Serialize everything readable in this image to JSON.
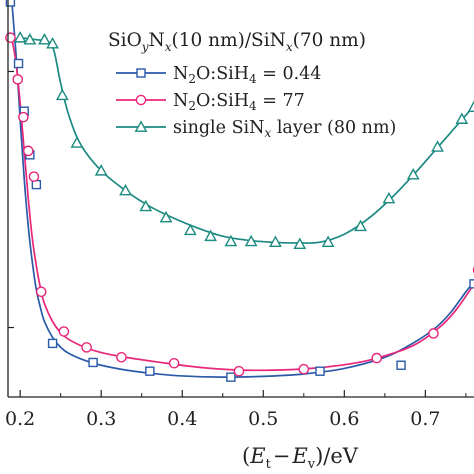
{
  "chart_data": {
    "type": "line",
    "xlabel_parts": [
      "(",
      "E",
      "t",
      "−",
      "E",
      "v",
      ")/eV"
    ],
    "ylabel": "",
    "xlim": [
      0.185,
      0.76
    ],
    "ylim": [
      0,
      1
    ],
    "x_ticks": [
      "0.2",
      "0.3",
      "0.4",
      "0.5",
      "0.6",
      "0.7"
    ],
    "x_tick_values": [
      0.2,
      0.3,
      0.4,
      0.5,
      0.6,
      0.7
    ],
    "legend_title_parts": [
      "SiO",
      "y",
      "N",
      "x",
      "(10 nm)/SiN",
      "x",
      "(70 nm)"
    ],
    "legend_placement": "top-right",
    "series": [
      {
        "label_parts": [
          "N",
          "2",
          "O:SiH",
          "4",
          " = 0.44"
        ],
        "color": "#2a5aa8",
        "marker": "square",
        "x": [
          0.188,
          0.198,
          0.205,
          0.212,
          0.22,
          0.24,
          0.29,
          0.36,
          0.46,
          0.57,
          0.67,
          0.76
        ],
        "y": [
          0.995,
          0.84,
          0.72,
          0.61,
          0.535,
          0.135,
          0.087,
          0.065,
          0.05,
          0.065,
          0.08,
          0.285
        ],
        "curve_x": [
          0.19,
          0.195,
          0.2,
          0.205,
          0.21,
          0.215,
          0.22,
          0.225,
          0.23,
          0.24,
          0.25,
          0.26,
          0.28,
          0.3,
          0.33,
          0.36,
          0.4,
          0.45,
          0.5,
          0.55,
          0.6,
          0.65,
          0.68,
          0.71,
          0.73,
          0.75,
          0.76
        ],
        "curve_y": [
          0.99,
          0.86,
          0.7,
          0.55,
          0.43,
          0.34,
          0.27,
          0.225,
          0.19,
          0.15,
          0.125,
          0.11,
          0.092,
          0.08,
          0.068,
          0.06,
          0.053,
          0.05,
          0.052,
          0.058,
          0.072,
          0.1,
          0.13,
          0.17,
          0.21,
          0.265,
          0.29
        ]
      },
      {
        "label_parts": [
          "N",
          "2",
          "O:SiH",
          "4",
          " = 77"
        ],
        "color": "#e8277a",
        "marker": "circle",
        "x": [
          0.188,
          0.197,
          0.204,
          0.21,
          0.217,
          0.226,
          0.254,
          0.282,
          0.325,
          0.39,
          0.47,
          0.55,
          0.64,
          0.71,
          0.765
        ],
        "y": [
          0.905,
          0.8,
          0.705,
          0.62,
          0.555,
          0.265,
          0.165,
          0.125,
          0.1,
          0.085,
          0.065,
          0.07,
          0.098,
          0.16,
          0.32
        ],
        "curve_x": [
          0.19,
          0.195,
          0.2,
          0.205,
          0.21,
          0.215,
          0.22,
          0.225,
          0.23,
          0.24,
          0.25,
          0.26,
          0.28,
          0.3,
          0.33,
          0.37,
          0.42,
          0.47,
          0.52,
          0.57,
          0.62,
          0.66,
          0.69,
          0.72,
          0.74,
          0.765
        ],
        "curve_y": [
          0.9,
          0.84,
          0.74,
          0.62,
          0.5,
          0.4,
          0.33,
          0.275,
          0.235,
          0.19,
          0.162,
          0.145,
          0.125,
          0.112,
          0.1,
          0.088,
          0.075,
          0.068,
          0.068,
          0.074,
          0.088,
          0.11,
          0.135,
          0.18,
          0.225,
          0.3
        ]
      },
      {
        "label_parts": [
          "single SiN",
          "x",
          " layer (80 nm)"
        ],
        "color": "#1b8a80",
        "marker": "triangle",
        "x": [
          0.2,
          0.212,
          0.23,
          0.24,
          0.252,
          0.27,
          0.3,
          0.33,
          0.355,
          0.38,
          0.41,
          0.435,
          0.46,
          0.485,
          0.515,
          0.545,
          0.58,
          0.62,
          0.655,
          0.685,
          0.715,
          0.745,
          0.76
        ],
        "y": [
          0.905,
          0.9,
          0.9,
          0.89,
          0.76,
          0.64,
          0.57,
          0.52,
          0.48,
          0.452,
          0.42,
          0.405,
          0.392,
          0.392,
          0.39,
          0.385,
          0.39,
          0.43,
          0.5,
          0.56,
          0.63,
          0.7,
          0.73
        ],
        "curve_x": [
          0.2,
          0.22,
          0.235,
          0.242,
          0.25,
          0.26,
          0.275,
          0.3,
          0.33,
          0.36,
          0.39,
          0.42,
          0.45,
          0.48,
          0.51,
          0.54,
          0.57,
          0.6,
          0.63,
          0.66,
          0.69,
          0.72,
          0.75,
          0.765
        ],
        "curve_y": [
          0.905,
          0.9,
          0.895,
          0.87,
          0.79,
          0.71,
          0.635,
          0.57,
          0.52,
          0.48,
          0.45,
          0.425,
          0.405,
          0.395,
          0.39,
          0.388,
          0.39,
          0.41,
          0.45,
          0.505,
          0.57,
          0.64,
          0.71,
          0.745
        ]
      }
    ]
  }
}
